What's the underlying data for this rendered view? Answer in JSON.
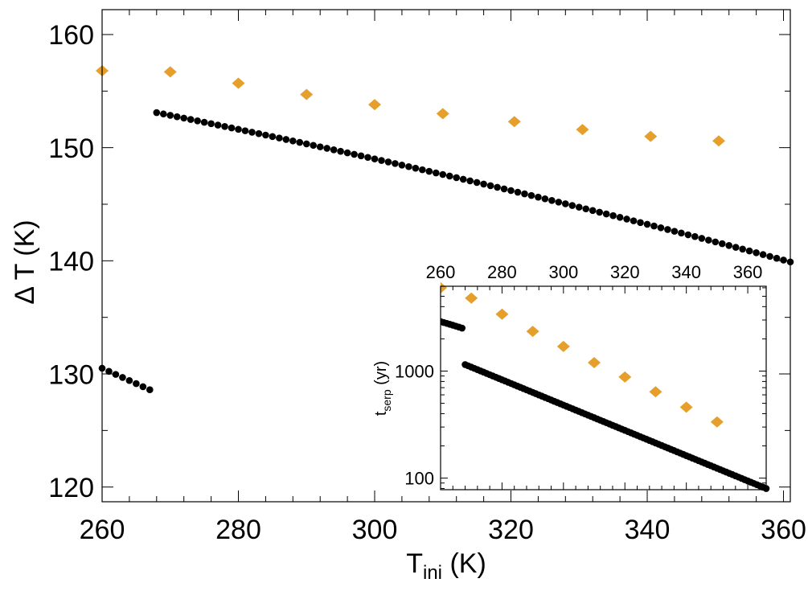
{
  "colors": {
    "black_series": "#000000",
    "orange_series": "#e69f2a",
    "axis": "#000000"
  },
  "chart_data": [
    {
      "type": "scatter",
      "title": "",
      "xlabel": "T",
      "xlabel_sub": "ini",
      "xlabel_unit": " (K)",
      "ylabel": "Δ T (K)",
      "xlim": [
        260,
        361
      ],
      "ylim": [
        118.7,
        162.2
      ],
      "xticks": [
        260,
        280,
        300,
        320,
        340,
        360
      ],
      "yticks": [
        120,
        130,
        140,
        150,
        160
      ],
      "xticklabels": [
        "260",
        "280",
        "300",
        "320",
        "340",
        "360"
      ],
      "yticklabels": [
        "120",
        "130",
        "140",
        "150",
        "160"
      ],
      "xminor": 5,
      "yminor": 2,
      "series": [
        {
          "marker": "circle",
          "color": "#000000",
          "segments": [
            {
              "x_start": 260,
              "x_end": 267,
              "step": 1,
              "y_start": 130.5,
              "y_end": 128.6
            },
            {
              "x_start": 268,
              "x_end": 361,
              "step": 1,
              "y_start": 153.1,
              "y_end": 139.9,
              "curve": 0.15
            }
          ]
        },
        {
          "marker": "diamond",
          "color": "#e69f2a",
          "x": [
            260,
            270,
            280,
            290,
            300,
            310,
            320.5,
            330.5,
            340.5,
            350.5
          ],
          "y": [
            156.8,
            156.7,
            155.7,
            154.7,
            153.8,
            153.0,
            152.3,
            151.6,
            151.0,
            150.6
          ]
        }
      ]
    },
    {
      "type": "scatter",
      "title": "",
      "xlabel": "",
      "ylabel": "t",
      "ylabel_sub": "serp",
      "ylabel_unit": " (yr)",
      "xscale": "linear",
      "yscale": "log",
      "xaxis_position": "top",
      "xlim": [
        260,
        366
      ],
      "ylim": [
        78,
        6200
      ],
      "xticks": [
        260,
        280,
        300,
        320,
        340,
        360
      ],
      "xticklabels": [
        "260",
        "280",
        "300",
        "320",
        "340",
        "360"
      ],
      "yticks": [
        100,
        1000
      ],
      "yticklabels": [
        "100",
        "1000"
      ],
      "xminor": 5,
      "series": [
        {
          "marker": "circle",
          "color": "#000000",
          "segments": [
            {
              "x_start": 260,
              "x_end": 267,
              "step": 1,
              "y_start": 2900,
              "y_end": 2520
            },
            {
              "x_start": 268,
              "x_end": 366,
              "step": 1,
              "y_start": 1150,
              "y_end": 80,
              "log_interp": true
            }
          ]
        },
        {
          "marker": "diamond",
          "color": "#e69f2a",
          "x": [
            260,
            270,
            280,
            290,
            300,
            310,
            320,
            330,
            340,
            350
          ],
          "y": [
            6000,
            4800,
            3400,
            2350,
            1700,
            1200,
            880,
            640,
            460,
            335
          ]
        }
      ]
    }
  ]
}
